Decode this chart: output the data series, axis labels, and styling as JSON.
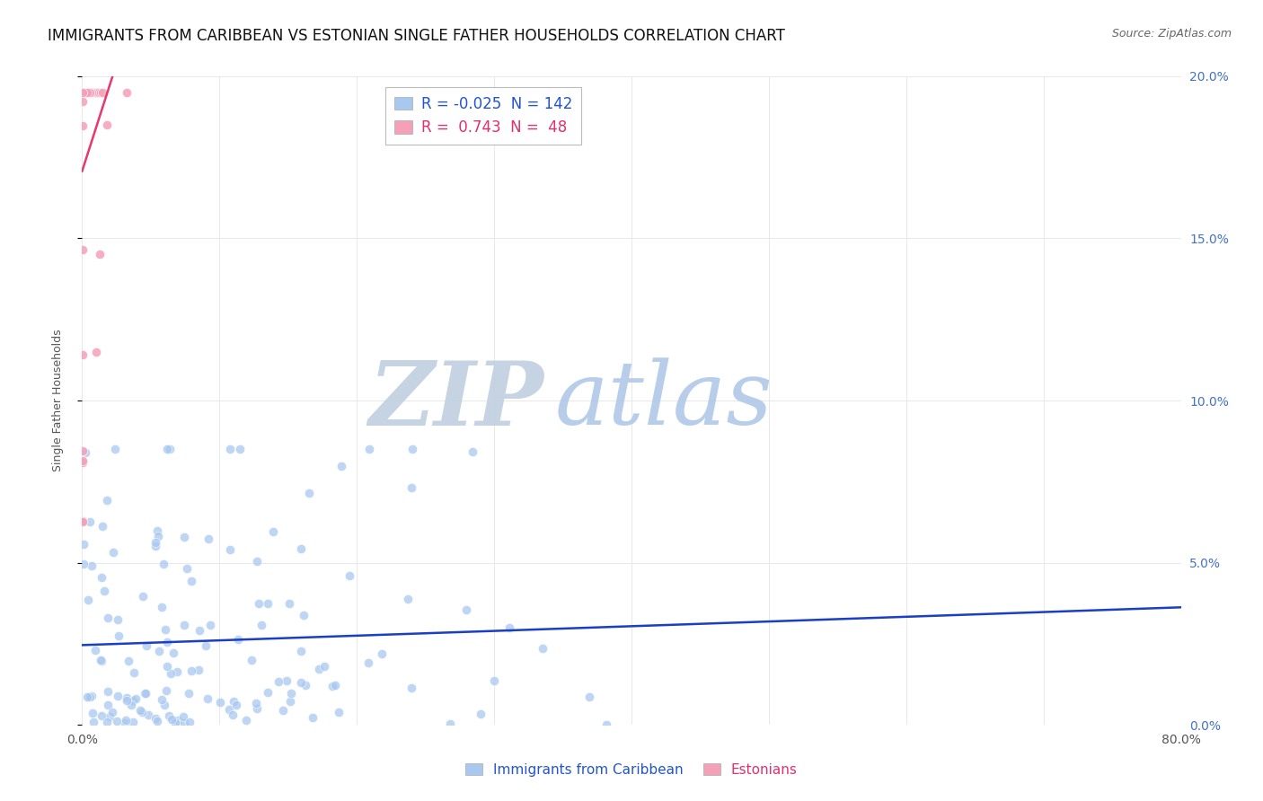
{
  "title": "IMMIGRANTS FROM CARIBBEAN VS ESTONIAN SINGLE FATHER HOUSEHOLDS CORRELATION CHART",
  "source": "Source: ZipAtlas.com",
  "ylabel": "Single Father Households",
  "xlim": [
    0,
    0.8
  ],
  "ylim": [
    0,
    0.2
  ],
  "xtick_labels": [
    "0.0%",
    "",
    "",
    "",
    "",
    "",
    "",
    "",
    "80.0%"
  ],
  "xtick_values": [
    0.0,
    0.1,
    0.2,
    0.3,
    0.4,
    0.5,
    0.6,
    0.7,
    0.8
  ],
  "ytick_labels_right": [
    "0.0%",
    "5.0%",
    "10.0%",
    "15.0%",
    "20.0%"
  ],
  "ytick_values": [
    0.0,
    0.05,
    0.1,
    0.15,
    0.2
  ],
  "series1_color": "#a8c8f0",
  "series2_color": "#f4a0b8",
  "trendline1_color": "#1a3fc4",
  "trendline2_color": "#e83870",
  "legend_R1": "-0.025",
  "legend_N1": "142",
  "legend_R2": "0.743",
  "legend_N2": "48",
  "watermark_ZIP_color": "#c8d8e8",
  "watermark_atlas_color": "#a8c8e8",
  "background_color": "#ffffff",
  "grid_color": "#e8e8e8",
  "title_fontsize": 12,
  "axis_label_fontsize": 9,
  "tick_fontsize": 10
}
